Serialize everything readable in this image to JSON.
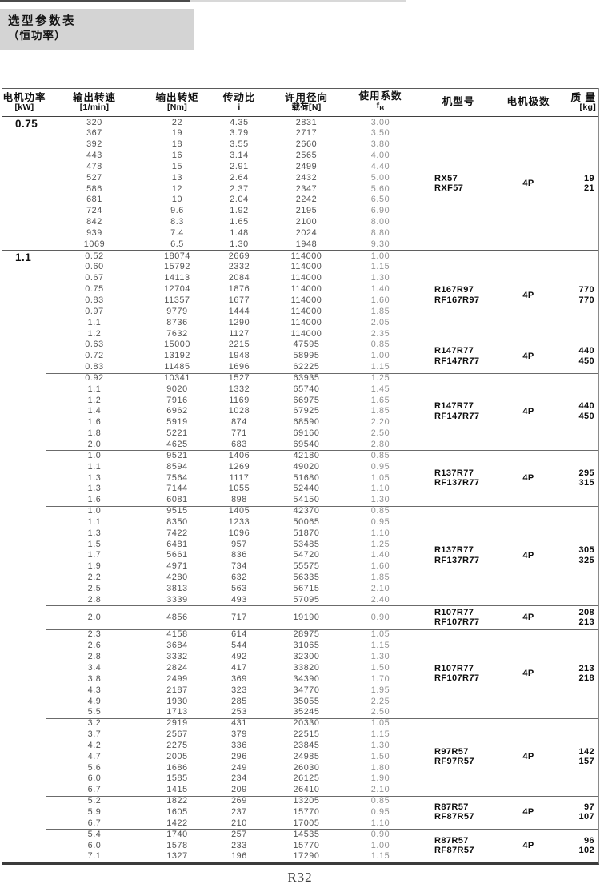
{
  "page": {
    "title_line1": "选型参数表",
    "title_line2": "（恒功率）",
    "footer": "R32"
  },
  "table": {
    "headers": {
      "power": {
        "l1": "电机功率",
        "l2": "[kW]"
      },
      "speed": {
        "l1": "输出转速",
        "l2": "[1/min]"
      },
      "torque": {
        "l1": "输出转矩",
        "l2": "[Nm]"
      },
      "ratio": {
        "l1": "传动比",
        "l2": "i"
      },
      "load": {
        "l1": "许用径向",
        "l2": "载荷[N]"
      },
      "fb": {
        "l1": "使用系数",
        "sym": "f",
        "sub": "B"
      },
      "model": {
        "l1": "机型号"
      },
      "poles": {
        "l1": "电机极数"
      },
      "mass": {
        "l1": "质 量",
        "l2": "[kg]"
      }
    },
    "columns_order": [
      "speed",
      "torque",
      "ratio",
      "load",
      "fb"
    ],
    "power_groups": [
      {
        "power": "0.75",
        "subblocks": [
          {
            "rows": [
              [
                "320",
                "22",
                "4.35",
                "2831",
                "3.00"
              ],
              [
                "367",
                "19",
                "3.79",
                "2717",
                "3.50"
              ],
              [
                "392",
                "18",
                "3.55",
                "2660",
                "3.80"
              ],
              [
                "443",
                "16",
                "3.14",
                "2565",
                "4.00"
              ],
              [
                "478",
                "15",
                "2.91",
                "2499",
                "4.40"
              ],
              [
                "527",
                "13",
                "2.64",
                "2432",
                "5.00"
              ],
              [
                "586",
                "12",
                "2.37",
                "2347",
                "5.60"
              ],
              [
                "681",
                "10",
                "2.04",
                "2242",
                "6.50"
              ],
              [
                "724",
                "9.6",
                "1.92",
                "2195",
                "6.90"
              ],
              [
                "842",
                "8.3",
                "1.65",
                "2100",
                "8.00"
              ],
              [
                "939",
                "7.4",
                "1.48",
                "2024",
                "8.80"
              ],
              [
                "1069",
                "6.5",
                "1.30",
                "1948",
                "9.30"
              ]
            ],
            "models": [
              "RX57",
              "RXF57"
            ],
            "poles": "4P",
            "masses": [
              "19",
              "21"
            ]
          }
        ]
      },
      {
        "power": "1.1",
        "subblocks": [
          {
            "rows": [
              [
                "0.52",
                "18074",
                "2669",
                "114000",
                "1.00"
              ],
              [
                "0.60",
                "15792",
                "2332",
                "114000",
                "1.15"
              ],
              [
                "0.67",
                "14113",
                "2084",
                "114000",
                "1.30"
              ],
              [
                "0.75",
                "12704",
                "1876",
                "114000",
                "1.40"
              ],
              [
                "0.83",
                "11357",
                "1677",
                "114000",
                "1.60"
              ],
              [
                "0.97",
                "9779",
                "1444",
                "114000",
                "1.85"
              ],
              [
                "1.1",
                "8736",
                "1290",
                "114000",
                "2.05"
              ],
              [
                "1.2",
                "7632",
                "1127",
                "114000",
                "2.35"
              ]
            ],
            "models": [
              "R167R97",
              "RF167R97"
            ],
            "poles": "4P",
            "masses": [
              "770",
              "770"
            ]
          },
          {
            "rows": [
              [
                "0.63",
                "15000",
                "2215",
                "47595",
                "0.85"
              ],
              [
                "0.72",
                "13192",
                "1948",
                "58995",
                "1.00"
              ],
              [
                "0.83",
                "11485",
                "1696",
                "62225",
                "1.15"
              ]
            ],
            "models": [
              "R147R77",
              "RF147R77"
            ],
            "poles": "4P",
            "masses": [
              "440",
              "450"
            ]
          },
          {
            "rows": [
              [
                "0.92",
                "10341",
                "1527",
                "63935",
                "1.25"
              ],
              [
                "1.1",
                "9020",
                "1332",
                "65740",
                "1.45"
              ],
              [
                "1.2",
                "7916",
                "1169",
                "66975",
                "1.65"
              ],
              [
                "1.4",
                "6962",
                "1028",
                "67925",
                "1.85"
              ],
              [
                "1.6",
                "5919",
                "874",
                "68590",
                "2.20"
              ],
              [
                "1.8",
                "5221",
                "771",
                "69160",
                "2.50"
              ],
              [
                "2.0",
                "4625",
                "683",
                "69540",
                "2.80"
              ]
            ],
            "models": [
              "R147R77",
              "RF147R77"
            ],
            "poles": "4P",
            "masses": [
              "440",
              "450"
            ]
          },
          {
            "rows": [
              [
                "1.0",
                "9521",
                "1406",
                "42180",
                "0.85"
              ],
              [
                "1.1",
                "8594",
                "1269",
                "49020",
                "0.95"
              ],
              [
                "1.3",
                "7564",
                "1117",
                "51680",
                "1.05"
              ],
              [
                "1.3",
                "7144",
                "1055",
                "52440",
                "1.10"
              ],
              [
                "1.6",
                "6081",
                "898",
                "54150",
                "1.30"
              ]
            ],
            "models": [
              "R137R77",
              "RF137R77"
            ],
            "poles": "4P",
            "masses": [
              "295",
              "315"
            ]
          },
          {
            "rows": [
              [
                "1.0",
                "9515",
                "1405",
                "42370",
                "0.85"
              ],
              [
                "1.1",
                "8350",
                "1233",
                "50065",
                "0.95"
              ],
              [
                "1.3",
                "7422",
                "1096",
                "51870",
                "1.10"
              ],
              [
                "1.5",
                "6481",
                "957",
                "53485",
                "1.25"
              ],
              [
                "1.7",
                "5661",
                "836",
                "54720",
                "1.40"
              ],
              [
                "1.9",
                "4971",
                "734",
                "55575",
                "1.60"
              ],
              [
                "2.2",
                "4280",
                "632",
                "56335",
                "1.85"
              ],
              [
                "2.5",
                "3813",
                "563",
                "56715",
                "2.10"
              ],
              [
                "2.8",
                "3339",
                "493",
                "57095",
                "2.40"
              ]
            ],
            "models": [
              "R137R77",
              "RF137R77"
            ],
            "poles": "4P",
            "masses": [
              "305",
              "325"
            ]
          },
          {
            "pad": true,
            "rows": [
              [
                "2.0",
                "4856",
                "717",
                "19190",
                "0.90"
              ]
            ],
            "models": [
              "R107R77",
              "RF107R77"
            ],
            "poles": "4P",
            "masses": [
              "208",
              "213"
            ]
          },
          {
            "rows": [
              [
                "2.3",
                "4158",
                "614",
                "28975",
                "1.05"
              ],
              [
                "2.6",
                "3684",
                "544",
                "31065",
                "1.15"
              ],
              [
                "2.8",
                "3332",
                "492",
                "32300",
                "1.30"
              ],
              [
                "3.4",
                "2824",
                "417",
                "33820",
                "1.50"
              ],
              [
                "3.8",
                "2499",
                "369",
                "34390",
                "1.70"
              ],
              [
                "4.3",
                "2187",
                "323",
                "34770",
                "1.95"
              ],
              [
                "4.9",
                "1930",
                "285",
                "35055",
                "2.25"
              ],
              [
                "5.5",
                "1713",
                "253",
                "35245",
                "2.50"
              ]
            ],
            "models": [
              "R107R77",
              "RF107R77"
            ],
            "poles": "4P",
            "masses": [
              "213",
              "218"
            ]
          },
          {
            "rows": [
              [
                "3.2",
                "2919",
                "431",
                "20330",
                "1.05"
              ],
              [
                "3.7",
                "2567",
                "379",
                "22515",
                "1.15"
              ],
              [
                "4.2",
                "2275",
                "336",
                "23845",
                "1.30"
              ],
              [
                "4.7",
                "2005",
                "296",
                "24985",
                "1.50"
              ],
              [
                "5.6",
                "1686",
                "249",
                "26030",
                "1.80"
              ],
              [
                "6.0",
                "1585",
                "234",
                "26125",
                "1.90"
              ],
              [
                "6.7",
                "1415",
                "209",
                "26410",
                "2.10"
              ]
            ],
            "models": [
              "R97R57",
              "RF97R57"
            ],
            "poles": "4P",
            "masses": [
              "142",
              "157"
            ]
          },
          {
            "rows": [
              [
                "5.2",
                "1822",
                "269",
                "13205",
                "0.85"
              ],
              [
                "5.9",
                "1605",
                "237",
                "15770",
                "0.95"
              ],
              [
                "6.7",
                "1422",
                "210",
                "17005",
                "1.10"
              ]
            ],
            "models": [
              "R87R57",
              "RF87R57"
            ],
            "poles": "4P",
            "masses": [
              "97",
              "107"
            ]
          },
          {
            "rows": [
              [
                "5.4",
                "1740",
                "257",
                "14535",
                "0.90"
              ],
              [
                "6.0",
                "1578",
                "233",
                "15770",
                "1.00"
              ],
              [
                "7.1",
                "1327",
                "196",
                "17290",
                "1.15"
              ]
            ],
            "models": [
              "R87R57",
              "RF87R57"
            ],
            "poles": "4P",
            "masses": [
              "96",
              "102"
            ]
          }
        ]
      }
    ]
  }
}
